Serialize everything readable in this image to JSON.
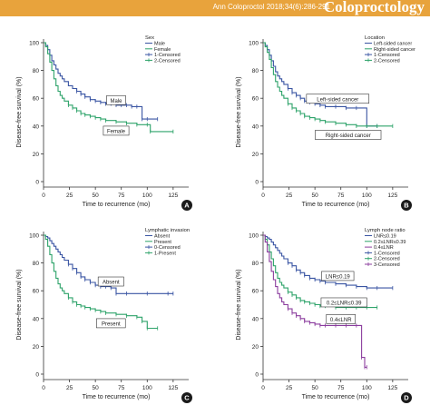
{
  "header": {
    "citation": "Ann Coloproctol 2018;34(6):286-291",
    "logo_text": "Coloproctology"
  },
  "colors": {
    "blue": "#3a55a3",
    "green": "#2ea36a",
    "purple": "#8b3d9e",
    "panel_badge": "#1a1a1a",
    "header": "#e8a33c"
  },
  "chart_data": [
    {
      "id": "A",
      "type": "line",
      "step": true,
      "xlabel": "Time to recurrence (mo)",
      "ylabel": "Disease-free survival (%)",
      "xlim": [
        0,
        140
      ],
      "ylim": [
        0,
        100
      ],
      "xticks": [
        0,
        25,
        50,
        75,
        100,
        125
      ],
      "yticks": [
        0,
        20,
        40,
        60,
        80,
        100
      ],
      "legend": {
        "title": "Sex",
        "placement": "top-right",
        "entries": [
          "Male",
          "Female",
          "1-Censored",
          "2-Censored"
        ]
      },
      "series": [
        {
          "name": "Male",
          "color": "blue",
          "x": [
            0,
            2,
            4,
            6,
            8,
            10,
            12,
            14,
            16,
            18,
            20,
            24,
            28,
            32,
            36,
            40,
            45,
            50,
            55,
            60,
            65,
            70,
            75,
            80,
            85,
            90,
            95,
            100,
            110
          ],
          "y": [
            100,
            98,
            95,
            91,
            87,
            84,
            81,
            78,
            76,
            74,
            72,
            69,
            67,
            65,
            63,
            61,
            59,
            58,
            57,
            56,
            56,
            55,
            55,
            55,
            54,
            54,
            45,
            45,
            45
          ]
        },
        {
          "name": "Female",
          "color": "green",
          "x": [
            0,
            2,
            4,
            6,
            8,
            10,
            12,
            14,
            16,
            18,
            20,
            24,
            28,
            32,
            36,
            40,
            45,
            50,
            55,
            60,
            70,
            80,
            90,
            100,
            103,
            125
          ],
          "y": [
            100,
            97,
            92,
            86,
            80,
            74,
            69,
            65,
            62,
            60,
            58,
            55,
            53,
            51,
            49,
            48,
            47,
            46,
            45,
            44,
            43,
            42,
            41,
            41,
            36,
            36
          ]
        }
      ],
      "annotations": [
        {
          "text": "Male",
          "x": 70,
          "y": 58
        },
        {
          "text": "Female",
          "x": 70,
          "y": 36
        }
      ]
    },
    {
      "id": "B",
      "type": "line",
      "step": true,
      "xlabel": "Time to recurrence (mo)",
      "ylabel": "Disease-free survival (%)",
      "xlim": [
        0,
        140
      ],
      "ylim": [
        0,
        100
      ],
      "xticks": [
        0,
        25,
        50,
        75,
        100,
        125
      ],
      "yticks": [
        0,
        20,
        40,
        60,
        80,
        100
      ],
      "legend": {
        "title": "Location",
        "placement": "top-right",
        "entries": [
          "Left-sided cancer",
          "Right-sided cancer",
          "1-Censored",
          "2-Censored"
        ]
      },
      "series": [
        {
          "name": "Left-sided cancer",
          "color": "blue",
          "x": [
            0,
            2,
            4,
            6,
            8,
            10,
            12,
            14,
            16,
            18,
            20,
            24,
            28,
            32,
            36,
            40,
            45,
            50,
            55,
            60,
            70,
            80,
            90,
            100,
            110
          ],
          "y": [
            100,
            98,
            95,
            91,
            87,
            83,
            79,
            76,
            74,
            72,
            70,
            67,
            64,
            62,
            60,
            58,
            57,
            56,
            55,
            54,
            54,
            53,
            53,
            40,
            40
          ]
        },
        {
          "name": "Right-sided cancer",
          "color": "green",
          "x": [
            0,
            2,
            4,
            6,
            8,
            10,
            12,
            14,
            16,
            18,
            20,
            24,
            28,
            32,
            36,
            40,
            45,
            50,
            55,
            60,
            70,
            80,
            90,
            100,
            110,
            125
          ],
          "y": [
            100,
            97,
            93,
            88,
            82,
            77,
            72,
            68,
            65,
            62,
            60,
            56,
            53,
            51,
            49,
            47,
            46,
            45,
            44,
            43,
            42,
            41,
            40,
            40,
            40,
            40
          ]
        }
      ],
      "annotations": [
        {
          "text": "Left-sided cancer",
          "x": 72,
          "y": 59
        },
        {
          "text": "Right-sided cancer",
          "x": 82,
          "y": 33
        }
      ]
    },
    {
      "id": "C",
      "type": "line",
      "step": true,
      "xlabel": "Time to recurrence (mo)",
      "ylabel": "Disease-free survival (%)",
      "xlim": [
        0,
        140
      ],
      "ylim": [
        0,
        100
      ],
      "xticks": [
        0,
        25,
        50,
        75,
        100,
        125
      ],
      "yticks": [
        0,
        20,
        40,
        60,
        80,
        100
      ],
      "legend": {
        "title": "Lymphatic invasion",
        "placement": "top-right",
        "entries": [
          "Absent",
          "Present",
          "0-Censored",
          "1-Present"
        ]
      },
      "series": [
        {
          "name": "Absent",
          "color": "blue",
          "x": [
            0,
            2,
            4,
            6,
            8,
            10,
            12,
            14,
            16,
            18,
            20,
            24,
            28,
            32,
            36,
            40,
            45,
            50,
            55,
            60,
            65,
            70,
            80,
            100,
            120,
            125
          ],
          "y": [
            100,
            99,
            98,
            96,
            94,
            92,
            90,
            88,
            86,
            84,
            82,
            79,
            76,
            73,
            70,
            68,
            66,
            64,
            63,
            63,
            62,
            58,
            58,
            58,
            58,
            58
          ]
        },
        {
          "name": "Present",
          "color": "green",
          "x": [
            0,
            2,
            4,
            6,
            8,
            10,
            12,
            14,
            16,
            18,
            20,
            24,
            28,
            32,
            36,
            40,
            45,
            50,
            55,
            60,
            70,
            80,
            90,
            95,
            100,
            110
          ],
          "y": [
            100,
            97,
            92,
            86,
            80,
            74,
            69,
            65,
            62,
            60,
            58,
            55,
            52,
            50,
            49,
            48,
            47,
            46,
            45,
            44,
            43,
            42,
            41,
            38,
            33,
            33
          ]
        }
      ],
      "annotations": [
        {
          "text": "Absent",
          "x": 65,
          "y": 66
        },
        {
          "text": "Present",
          "x": 65,
          "y": 36
        }
      ]
    },
    {
      "id": "D",
      "type": "line",
      "step": true,
      "xlabel": "Time to recurrence (mo)",
      "ylabel": "Disease-free survival (%)",
      "xlim": [
        0,
        140
      ],
      "ylim": [
        0,
        100
      ],
      "xticks": [
        0,
        25,
        50,
        75,
        100,
        125
      ],
      "yticks": [
        0,
        20,
        40,
        60,
        80,
        100
      ],
      "legend": {
        "title": "Lymph node ratio",
        "placement": "top-right",
        "entries": [
          "LNR≤0.19",
          "0.2≤LNR≤0.39",
          "0.4≤LNR",
          "1-Censored",
          "2-Censored",
          "3-Censored"
        ]
      },
      "series": [
        {
          "name": "LNR≤0.19",
          "color": "blue",
          "x": [
            0,
            2,
            4,
            6,
            8,
            10,
            12,
            14,
            16,
            18,
            20,
            24,
            28,
            32,
            36,
            40,
            45,
            50,
            55,
            60,
            70,
            80,
            90,
            100,
            110,
            125
          ],
          "y": [
            100,
            99,
            98,
            97,
            95,
            93,
            91,
            89,
            87,
            85,
            83,
            80,
            78,
            75,
            73,
            71,
            69,
            68,
            67,
            66,
            65,
            64,
            63,
            62,
            62,
            62
          ]
        },
        {
          "name": "0.2≤LNR≤0.39",
          "color": "green",
          "x": [
            0,
            2,
            4,
            6,
            8,
            10,
            12,
            14,
            16,
            18,
            20,
            24,
            28,
            32,
            36,
            40,
            45,
            50,
            55,
            60,
            70,
            80,
            90,
            100,
            110
          ],
          "y": [
            100,
            97,
            93,
            88,
            83,
            78,
            73,
            69,
            66,
            64,
            62,
            59,
            57,
            55,
            53,
            52,
            51,
            50,
            49,
            49,
            48,
            48,
            48,
            48,
            48
          ]
        },
        {
          "name": "0.4≤LNR",
          "color": "purple",
          "x": [
            0,
            2,
            4,
            6,
            8,
            10,
            12,
            14,
            16,
            18,
            20,
            24,
            28,
            32,
            36,
            40,
            45,
            50,
            55,
            60,
            70,
            80,
            90,
            95,
            98,
            100
          ],
          "y": [
            100,
            95,
            88,
            81,
            74,
            68,
            63,
            58,
            55,
            52,
            50,
            47,
            44,
            42,
            40,
            38,
            37,
            36,
            35,
            35,
            35,
            35,
            35,
            12,
            5,
            5
          ]
        }
      ],
      "annotations": [
        {
          "text": "LNR≤0.19",
          "x": 72,
          "y": 70
        },
        {
          "text": "0.2≤LNR≤0.39",
          "x": 78,
          "y": 51
        },
        {
          "text": "0.4≤LNR",
          "x": 75,
          "y": 39
        }
      ]
    }
  ]
}
